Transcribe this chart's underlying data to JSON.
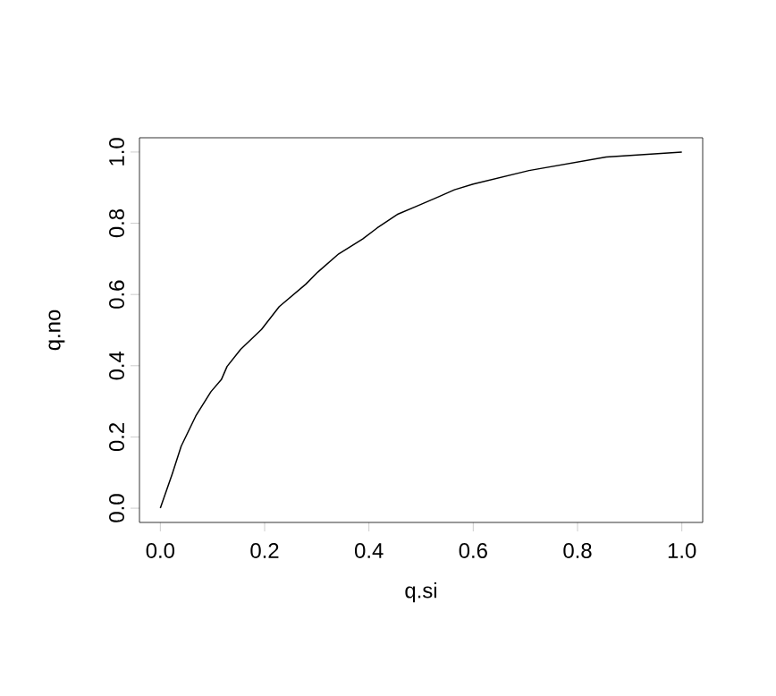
{
  "chart_data": {
    "type": "line",
    "xlabel": "q.si",
    "ylabel": "q.no",
    "x": [
      0,
      0.023,
      0.04,
      0.068,
      0.097,
      0.117,
      0.128,
      0.154,
      0.194,
      0.228,
      0.279,
      0.302,
      0.342,
      0.388,
      0.416,
      0.456,
      0.49,
      0.53,
      0.564,
      0.6,
      0.707,
      0.855,
      1.0
    ],
    "series": [
      {
        "color": "#000000",
        "values": [
          0,
          0.097,
          0.174,
          0.259,
          0.327,
          0.361,
          0.398,
          0.446,
          0.502,
          0.566,
          0.629,
          0.663,
          0.714,
          0.756,
          0.787,
          0.826,
          0.847,
          0.872,
          0.894,
          0.91,
          0.948,
          0.986,
          1.0
        ]
      }
    ],
    "xlim": [
      -0.04,
      1.04
    ],
    "ylim": [
      -0.04,
      1.04
    ],
    "xticks": [
      {
        "value": 0,
        "label": "0.0"
      },
      0.2,
      0.4,
      0.6,
      0.8,
      {
        "value": 1,
        "label": "1.0"
      }
    ],
    "yticks": [
      {
        "value": 0,
        "label": "0.0"
      },
      0.2,
      0.4,
      0.6,
      0.8,
      {
        "value": 1,
        "label": "1.0"
      }
    ],
    "grid": false,
    "marker": "none",
    "line_style": "solid"
  }
}
